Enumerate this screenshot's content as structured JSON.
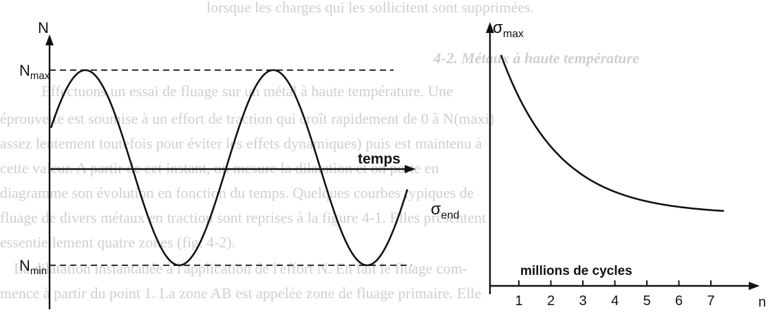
{
  "left_diagram": {
    "y_axis_label": "N",
    "x_axis_label": "temps",
    "max_label": "N",
    "max_label_sub": "max",
    "min_label": "N",
    "min_label_sub": "min"
  },
  "right_diagram": {
    "y_axis_label": "σ",
    "y_axis_label_sub": "max",
    "end_label": "σ",
    "end_label_sub": "end",
    "x_axis_label": "millions de cycles",
    "x_axis_end_label": "n",
    "x_ticks": [
      "1",
      "2",
      "3",
      "4",
      "5",
      "6",
      "7"
    ]
  },
  "background_text": {
    "lines": [
      "lorsque les charges qui les sollicitent sont supprimées.",
      "4-2. Métaux à haute température",
      "Effectuons un essai de fluage sur un métal à haute température. Une",
      "éprouvette est soumise à un effort de traction qui croît rapidement de 0 à N(maxi)",
      "assez lentement toutefois pour éviter les effets dynamiques) puis est maintenu à",
      "cette valeur. A partir de cet instant, on mesure la dilatation et on porte en",
      "diagramme son évolution en fonction du temps. Quelques courbes typiques de",
      "fluage de divers métaux en traction sont reprises à la figure 4-1. Elles présentent",
      "essentiellement quatre zones (fig. 4-2).",
      "La dilatation instantanée à l'application de l'effort N. En fait le fluage com-",
      "mence à partir du point 1. La zone AB est appelée zone de fluage primaire. Elle"
    ]
  }
}
